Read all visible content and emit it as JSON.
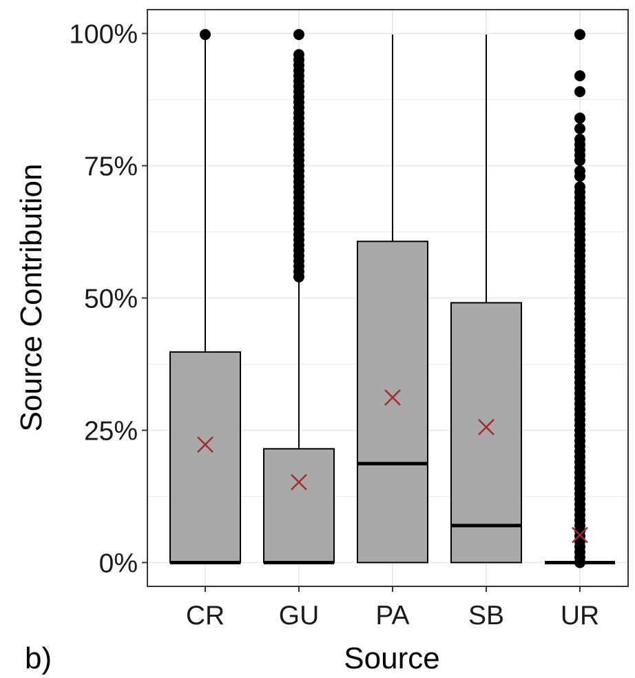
{
  "chart_data": {
    "type": "boxplot",
    "panel_label": "b)",
    "xlabel": "Source",
    "ylabel": "Source Contribution",
    "categories": [
      "CR",
      "GU",
      "PA",
      "SB",
      "UR"
    ],
    "ylim": [
      -0.045,
      1.045
    ],
    "yticks": [
      0,
      0.25,
      0.5,
      0.75,
      1.0
    ],
    "ytick_labels": [
      "0%",
      "25%",
      "50%",
      "75%",
      "100%"
    ],
    "grid": true,
    "boxes": [
      {
        "category": "CR",
        "q1": 0.0,
        "median": 0.0,
        "q3": 0.398,
        "whisker_low": 0.0,
        "whisker_high": 0.99,
        "mean": 0.223,
        "outliers": [
          0.998
        ]
      },
      {
        "category": "GU",
        "q1": 0.0,
        "median": 0.0,
        "q3": 0.215,
        "whisker_low": 0.0,
        "whisker_high": 0.535,
        "mean": 0.152,
        "outliers": [
          0.54,
          0.55,
          0.56,
          0.57,
          0.58,
          0.59,
          0.6,
          0.61,
          0.62,
          0.63,
          0.64,
          0.65,
          0.66,
          0.67,
          0.68,
          0.69,
          0.7,
          0.71,
          0.72,
          0.73,
          0.74,
          0.75,
          0.76,
          0.77,
          0.78,
          0.79,
          0.8,
          0.81,
          0.82,
          0.83,
          0.84,
          0.85,
          0.86,
          0.87,
          0.88,
          0.89,
          0.9,
          0.91,
          0.92,
          0.93,
          0.94,
          0.95,
          0.96,
          0.998
        ]
      },
      {
        "category": "PA",
        "q1": 0.0,
        "median": 0.187,
        "q3": 0.607,
        "whisker_low": 0.0,
        "whisker_high": 0.998,
        "mean": 0.312,
        "outliers": []
      },
      {
        "category": "SB",
        "q1": 0.0,
        "median": 0.07,
        "q3": 0.491,
        "whisker_low": 0.0,
        "whisker_high": 0.998,
        "mean": 0.256,
        "outliers": []
      },
      {
        "category": "UR",
        "q1": 0.0,
        "median": 0.0,
        "q3": 0.0,
        "whisker_low": 0.0,
        "whisker_high": 0.0,
        "mean": 0.052,
        "outliers": [
          0.0,
          0.01,
          0.02,
          0.03,
          0.04,
          0.05,
          0.06,
          0.07,
          0.08,
          0.09,
          0.1,
          0.11,
          0.12,
          0.13,
          0.14,
          0.15,
          0.16,
          0.17,
          0.18,
          0.19,
          0.2,
          0.21,
          0.22,
          0.23,
          0.24,
          0.25,
          0.26,
          0.27,
          0.28,
          0.29,
          0.3,
          0.31,
          0.32,
          0.33,
          0.34,
          0.35,
          0.36,
          0.37,
          0.38,
          0.39,
          0.4,
          0.41,
          0.42,
          0.43,
          0.44,
          0.45,
          0.46,
          0.47,
          0.48,
          0.49,
          0.5,
          0.51,
          0.52,
          0.53,
          0.54,
          0.55,
          0.56,
          0.57,
          0.58,
          0.59,
          0.6,
          0.61,
          0.62,
          0.63,
          0.64,
          0.65,
          0.66,
          0.67,
          0.68,
          0.69,
          0.7,
          0.71,
          0.73,
          0.74,
          0.76,
          0.77,
          0.78,
          0.79,
          0.8,
          0.82,
          0.84,
          0.89,
          0.92,
          0.998
        ]
      }
    ],
    "colors": {
      "box_fill": "#a9a9a9",
      "box_stroke": "#000000",
      "mean_marker": "#a52a2a",
      "grid": "#ebebeb",
      "panel_border": "#333333"
    },
    "mean_marker_symbol": "x"
  }
}
